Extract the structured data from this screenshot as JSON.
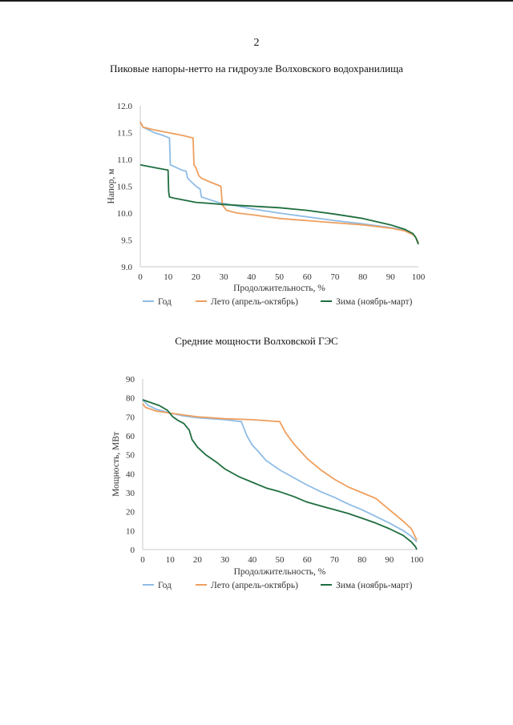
{
  "page": {
    "number": "2"
  },
  "colors": {
    "year": "#8fbce6",
    "summer": "#ee9f5f",
    "winter": "#1f6e3f",
    "axis": "#c8c8c8"
  },
  "chart_data": [
    {
      "type": "line",
      "title": "Пиковые напоры-нетто на гидроузле Волховского водохранилища",
      "xlabel": "Продолжительность, %",
      "ylabel": "Напор, м",
      "xlim": [
        0,
        100
      ],
      "ylim": [
        9.0,
        12.0
      ],
      "x_ticks": [
        "0",
        "10",
        "20",
        "30",
        "40",
        "50",
        "60",
        "70",
        "80",
        "90",
        "100"
      ],
      "y_ticks": [
        "9.0",
        "9.5",
        "10.0",
        "10.5",
        "11.0",
        "11.5",
        "12.0"
      ],
      "grid": false,
      "legend_position": "bottom",
      "series": [
        {
          "name": "Год",
          "color_key": "year",
          "x": [
            0,
            1,
            3,
            5,
            8,
            10.5,
            10.8,
            15,
            16.5,
            17,
            20,
            21.5,
            22,
            25,
            28,
            30,
            40,
            50,
            60,
            70,
            80,
            90,
            95,
            98,
            99,
            100
          ],
          "y": [
            11.7,
            11.6,
            11.55,
            11.5,
            11.45,
            11.4,
            10.9,
            10.8,
            10.78,
            10.65,
            10.5,
            10.45,
            10.3,
            10.25,
            10.2,
            10.18,
            10.08,
            10.0,
            9.93,
            9.86,
            9.8,
            9.73,
            9.68,
            9.6,
            9.55,
            9.45
          ]
        },
        {
          "name": "Лето (апрель-октябрь)",
          "color_key": "summer",
          "x": [
            0,
            1,
            5,
            10,
            15,
            19,
            19.3,
            20,
            21,
            22,
            25,
            29,
            29.5,
            31,
            35,
            40,
            50,
            60,
            70,
            80,
            90,
            95,
            98,
            99,
            100
          ],
          "y": [
            11.7,
            11.6,
            11.55,
            11.5,
            11.45,
            11.4,
            10.9,
            10.85,
            10.7,
            10.65,
            10.58,
            10.5,
            10.15,
            10.05,
            10.0,
            9.97,
            9.9,
            9.86,
            9.82,
            9.78,
            9.72,
            9.67,
            9.6,
            9.55,
            9.45
          ]
        },
        {
          "name": "Зима (ноябрь-март)",
          "color_key": "winter",
          "x": [
            0,
            5,
            10,
            10.2,
            10.5,
            12,
            15,
            20,
            25,
            30,
            40,
            50,
            60,
            70,
            80,
            90,
            95,
            98,
            99,
            100
          ],
          "y": [
            10.9,
            10.85,
            10.8,
            10.4,
            10.3,
            10.28,
            10.25,
            10.2,
            10.18,
            10.16,
            10.13,
            10.1,
            10.05,
            9.98,
            9.9,
            9.78,
            9.7,
            9.62,
            9.55,
            9.42
          ]
        }
      ]
    },
    {
      "type": "line",
      "title": "Средние мощности Волховской ГЭС",
      "xlabel": "Продолжительность, %",
      "ylabel": "Мощность, МВт",
      "xlim": [
        0,
        100
      ],
      "ylim": [
        0,
        90
      ],
      "x_ticks": [
        "0",
        "10",
        "20",
        "30",
        "40",
        "50",
        "60",
        "70",
        "80",
        "90",
        "100"
      ],
      "y_ticks": [
        "0",
        "10",
        "20",
        "30",
        "40",
        "50",
        "60",
        "70",
        "80",
        "90"
      ],
      "grid": false,
      "legend_position": "bottom",
      "series": [
        {
          "name": "Год",
          "color_key": "year",
          "x": [
            0,
            2,
            5,
            10,
            15,
            20,
            25,
            30,
            36,
            38,
            40,
            42,
            45,
            50,
            55,
            60,
            65,
            70,
            75,
            80,
            85,
            90,
            95,
            98,
            100
          ],
          "y": [
            79,
            76,
            74,
            72,
            70.5,
            69.5,
            69,
            68.5,
            67.5,
            60,
            55,
            52,
            47,
            42,
            38,
            34,
            30.5,
            27.5,
            24,
            21,
            17.5,
            14,
            10,
            7,
            4
          ]
        },
        {
          "name": "Лето (апрель-октябрь)",
          "color_key": "summer",
          "x": [
            0,
            1,
            5,
            10,
            15,
            20,
            30,
            40,
            50,
            52,
            55,
            60,
            65,
            70,
            75,
            80,
            85,
            90,
            95,
            98,
            100
          ],
          "y": [
            77,
            75,
            73,
            72,
            71,
            70,
            69,
            68.5,
            67.5,
            62,
            56,
            48,
            42,
            37,
            33,
            30,
            27,
            21,
            15,
            11,
            5
          ]
        },
        {
          "name": "Зима (ноябрь-март)",
          "color_key": "winter",
          "x": [
            0,
            3,
            6,
            9,
            11,
            13,
            15,
            17,
            18,
            20,
            23,
            27,
            30,
            35,
            40,
            45,
            50,
            55,
            60,
            65,
            70,
            75,
            80,
            85,
            90,
            95,
            98,
            99.5,
            100
          ],
          "y": [
            79,
            77.5,
            76,
            73.5,
            70,
            68,
            66.5,
            63,
            58,
            54,
            50,
            46,
            42.5,
            38.5,
            35.5,
            32.5,
            30.5,
            28,
            25,
            23,
            21,
            19,
            16.5,
            14,
            11,
            7.5,
            4,
            1.5,
            0
          ]
        }
      ]
    }
  ]
}
